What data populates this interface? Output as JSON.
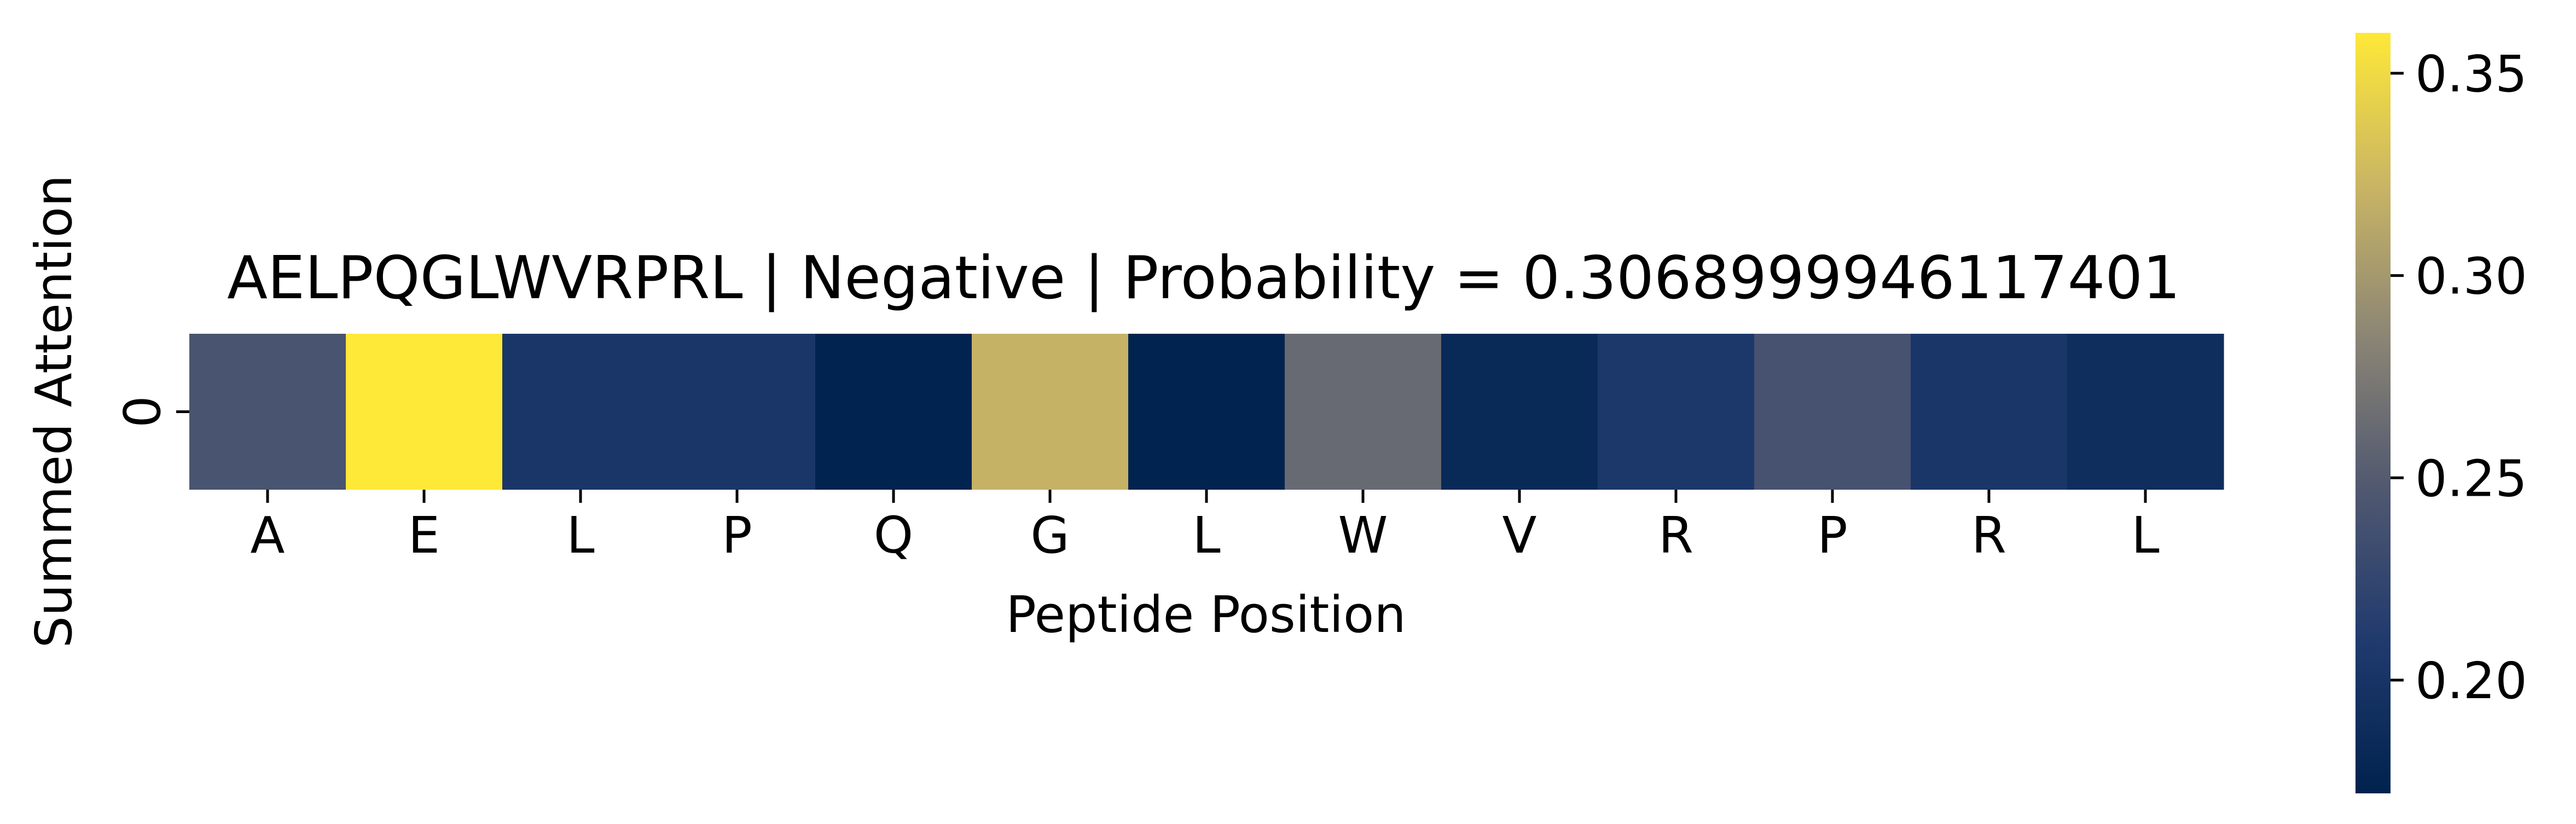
{
  "chart_data": {
    "type": "heatmap",
    "title": "AELPQGLWVRPRL | Negative | Probability = 0.3068999946117401",
    "xlabel": "Peptide Position",
    "ylabel": "Summed Attention",
    "x_categories": [
      "A",
      "E",
      "L",
      "P",
      "Q",
      "G",
      "L",
      "W",
      "V",
      "R",
      "P",
      "R",
      "L"
    ],
    "y_categories": [
      "0"
    ],
    "values": [
      [
        0.242,
        0.36,
        0.203,
        0.203,
        0.173,
        0.32,
        0.173,
        0.262,
        0.183,
        0.205,
        0.24,
        0.203,
        0.19
      ]
    ],
    "colormap": "cividis",
    "colorbar": {
      "vmin": 0.172,
      "vmax": 0.36,
      "ticks": [
        0.2,
        0.25,
        0.3,
        0.35
      ],
      "tick_labels": [
        "0.20",
        "0.25",
        "0.30",
        "0.35"
      ]
    }
  }
}
